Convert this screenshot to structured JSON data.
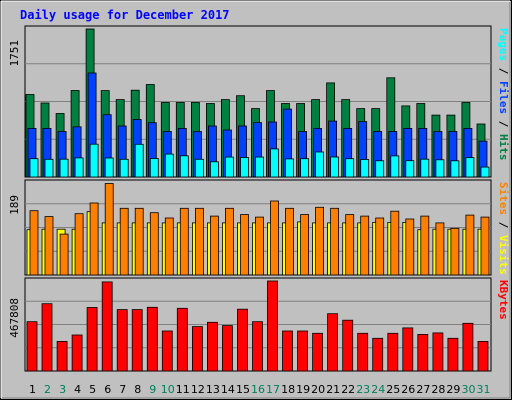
{
  "colors": {
    "background": "#c0c0c0",
    "plot_bg": "#c0c0c0",
    "title": "#0000ff",
    "hits": "#008040",
    "files": "#0040ff",
    "pages": "#00ffff",
    "visits": "#ffff00",
    "sites": "#ff8000",
    "kbytes": "#ff0000",
    "weekday": "#000000",
    "weekend": "#00805c"
  },
  "chart_data": {
    "type": "bar",
    "title": "Daily usage for December 2017",
    "categories": [
      "1",
      "2",
      "3",
      "4",
      "5",
      "6",
      "7",
      "8",
      "9",
      "10",
      "11",
      "12",
      "13",
      "14",
      "15",
      "16",
      "17",
      "18",
      "19",
      "20",
      "21",
      "22",
      "23",
      "24",
      "25",
      "26",
      "27",
      "28",
      "29",
      "30",
      "31"
    ],
    "weekend_days": [
      "2",
      "3",
      "9",
      "10",
      "16",
      "17",
      "23",
      "24",
      "30",
      "31"
    ],
    "panels": [
      {
        "name": "usage",
        "ytick": "1751",
        "ymax": 1751,
        "legend": [
          {
            "text": "Pages",
            "color": "#00ffff"
          },
          {
            "text": " / ",
            "color": "#000000"
          },
          {
            "text": "Files",
            "color": "#0040ff"
          },
          {
            "text": " / ",
            "color": "#000000"
          },
          {
            "text": "Hits",
            "color": "#008040"
          }
        ],
        "series": [
          {
            "name": "Hits",
            "color": "#008040",
            "values": [
              976,
              876,
              751,
              1023,
              1751,
              1022,
              916,
              1027,
              1094,
              882,
              882,
              882,
              870,
              916,
              962,
              809,
              1022,
              870,
              870,
              916,
              1113,
              916,
              809,
              809,
              1174,
              841,
              870,
              732,
              732,
              882,
              627
            ]
          },
          {
            "name": "Files",
            "color": "#0040ff",
            "values": [
              575,
              575,
              538,
              594,
              1230,
              737,
              603,
              680,
              643,
              538,
              575,
              538,
              603,
              556,
              603,
              644,
              651,
              803,
              538,
              575,
              661,
              575,
              655,
              538,
              538,
              575,
              575,
              538,
              538,
              575,
              423
            ]
          },
          {
            "name": "Pages",
            "color": "#00ffff",
            "values": [
              217,
              210,
              211,
              226,
              388,
              225,
              210,
              387,
              219,
              271,
              251,
              209,
              180,
              235,
              231,
              236,
              333,
              214,
              217,
              296,
              237,
              216,
              207,
              192,
              250,
              193,
              211,
              203,
              192,
              230,
              117
            ]
          }
        ]
      },
      {
        "name": "visits",
        "ytick": "189",
        "ymax": 189,
        "legend": [
          {
            "text": "Sites",
            "color": "#ff8000"
          },
          {
            "text": " / ",
            "color": "#000000"
          },
          {
            "text": "Visits",
            "color": "#ffff00"
          }
        ],
        "series": [
          {
            "name": "Visits",
            "color": "#ffff00",
            "values": [
              93,
              94,
              94,
              94,
              130,
              107,
              107,
              107,
              107,
              107,
              107,
              107,
              107,
              107,
              107,
              107,
              107,
              107,
              109,
              107,
              107,
              107,
              107,
              108,
              108,
              108,
              93,
              94,
              94,
              94,
              94
            ]
          },
          {
            "name": "Sites",
            "color": "#ff8000",
            "values": [
              132,
              120,
              84,
              126,
              148,
              188,
              137,
              137,
              128,
              117,
              137,
              137,
              121,
              137,
              124,
              119,
              152,
              137,
              124,
              139,
              137,
              124,
              121,
              117,
              131,
              115,
              121,
              107,
              96,
              123,
              119
            ]
          }
        ]
      },
      {
        "name": "kbytes",
        "ytick": "467808",
        "ymax": 467808,
        "legend": [
          {
            "text": "KBytes",
            "color": "#ff0000"
          }
        ],
        "series": [
          {
            "name": "KBytes",
            "color": "#ff0000",
            "values": [
              256000,
              350000,
              154000,
              187000,
              330000,
              463000,
              319000,
              319000,
              331000,
              208000,
              326000,
              231000,
              253000,
              236000,
              321000,
              256000,
              467808,
              208000,
              208000,
              196000,
              298000,
              264000,
              196000,
              170000,
              196000,
              224000,
              190000,
              198000,
              170000,
              248000,
              154000
            ]
          }
        ]
      }
    ]
  }
}
